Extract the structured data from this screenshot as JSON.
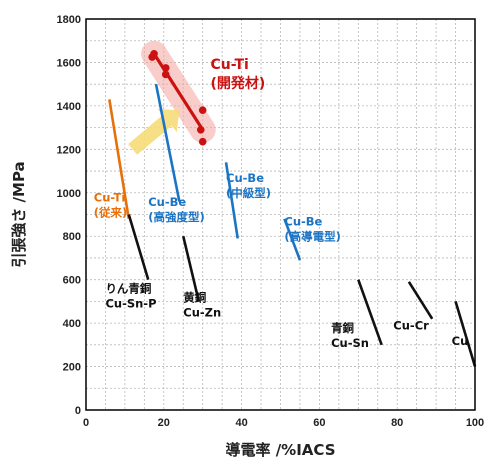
{
  "chart_data": {
    "type": "line",
    "xlabel": "導電率 /%IACS",
    "ylabel": "引張強さ /MPa",
    "xlim": [
      0,
      100
    ],
    "ylim": [
      0,
      1800
    ],
    "xticks": [
      0,
      20,
      40,
      60,
      80,
      100
    ],
    "yticks": [
      0,
      200,
      400,
      600,
      800,
      1000,
      1200,
      1400,
      1600,
      1800
    ],
    "grid": "dashed",
    "colors": {
      "red": "#cc1111",
      "highlight": "#f4a6a0",
      "orange": "#e8700a",
      "blue": "#1c74c4",
      "black": "#111111",
      "arrow": "#f6dc78"
    },
    "series": [
      {
        "name": "Cu-Ti (開発材)",
        "color": "red",
        "points": [
          [
            17.5,
            1640
          ],
          [
            17,
            1625
          ],
          [
            20.5,
            1575
          ],
          [
            20.5,
            1545
          ],
          [
            30,
            1380
          ],
          [
            29.5,
            1290
          ],
          [
            30,
            1235
          ]
        ],
        "fit": [
          [
            17.5,
            1640
          ],
          [
            30,
            1290
          ]
        ]
      },
      {
        "name": "Cu-Ti (従来)",
        "color": "orange",
        "line": [
          [
            6,
            1430
          ],
          [
            11,
            880
          ]
        ]
      },
      {
        "name": "Cu-Be (高強度型)",
        "color": "blue",
        "line": [
          [
            18,
            1500
          ],
          [
            24,
            960
          ]
        ]
      },
      {
        "name": "Cu-Be (中級型)",
        "color": "blue",
        "line": [
          [
            36,
            1140
          ],
          [
            39,
            790
          ]
        ]
      },
      {
        "name": "Cu-Be (高導電型)",
        "color": "blue",
        "line": [
          [
            51,
            880
          ],
          [
            55,
            690
          ]
        ]
      },
      {
        "name": "りん青銅 Cu-Sn-P",
        "color": "black",
        "line": [
          [
            11,
            900
          ],
          [
            16,
            600
          ]
        ]
      },
      {
        "name": "黄銅 Cu-Zn",
        "color": "black",
        "line": [
          [
            25,
            800
          ],
          [
            29,
            500
          ]
        ]
      },
      {
        "name": "青銅 Cu-Sn",
        "color": "black",
        "line": [
          [
            70,
            600
          ],
          [
            76,
            300
          ]
        ]
      },
      {
        "name": "Cu-Cr",
        "color": "black",
        "line": [
          [
            83,
            590
          ],
          [
            89,
            420
          ]
        ]
      },
      {
        "name": "Cu",
        "color": "black",
        "line": [
          [
            95,
            500
          ],
          [
            100,
            200
          ]
        ]
      }
    ],
    "arrow": {
      "from": [
        12,
        1200
      ],
      "to": [
        24,
        1380
      ],
      "color": "arrow"
    },
    "annotations": [
      {
        "lines": [
          "Cu-Ti",
          "(開発材)"
        ],
        "color": "red",
        "big": true,
        "at": [
          32,
          1570
        ]
      },
      {
        "lines": [
          "Cu-Ti",
          "(従来)"
        ],
        "color": "orange",
        "at": [
          2,
          960
        ]
      },
      {
        "lines": [
          "Cu-Be",
          "(高強度型)"
        ],
        "color": "blue",
        "at": [
          16,
          940
        ]
      },
      {
        "lines": [
          "Cu-Be",
          "(中級型)"
        ],
        "color": "blue",
        "at": [
          36,
          1050
        ]
      },
      {
        "lines": [
          "Cu-Be",
          "(高導電型)"
        ],
        "color": "blue",
        "at": [
          51,
          850
        ]
      },
      {
        "lines": [
          "りん青銅",
          "Cu-Sn-P"
        ],
        "color": "black",
        "at": [
          5,
          540
        ]
      },
      {
        "lines": [
          "黄銅",
          "Cu-Zn"
        ],
        "color": "black",
        "at": [
          25,
          500
        ]
      },
      {
        "lines": [
          "青銅",
          "Cu-Sn"
        ],
        "color": "black",
        "at": [
          63,
          360
        ]
      },
      {
        "lines": [
          "Cu-Cr"
        ],
        "color": "black",
        "at": [
          79,
          370
        ]
      },
      {
        "lines": [
          "Cu"
        ],
        "color": "black",
        "at": [
          94,
          300
        ]
      }
    ]
  }
}
